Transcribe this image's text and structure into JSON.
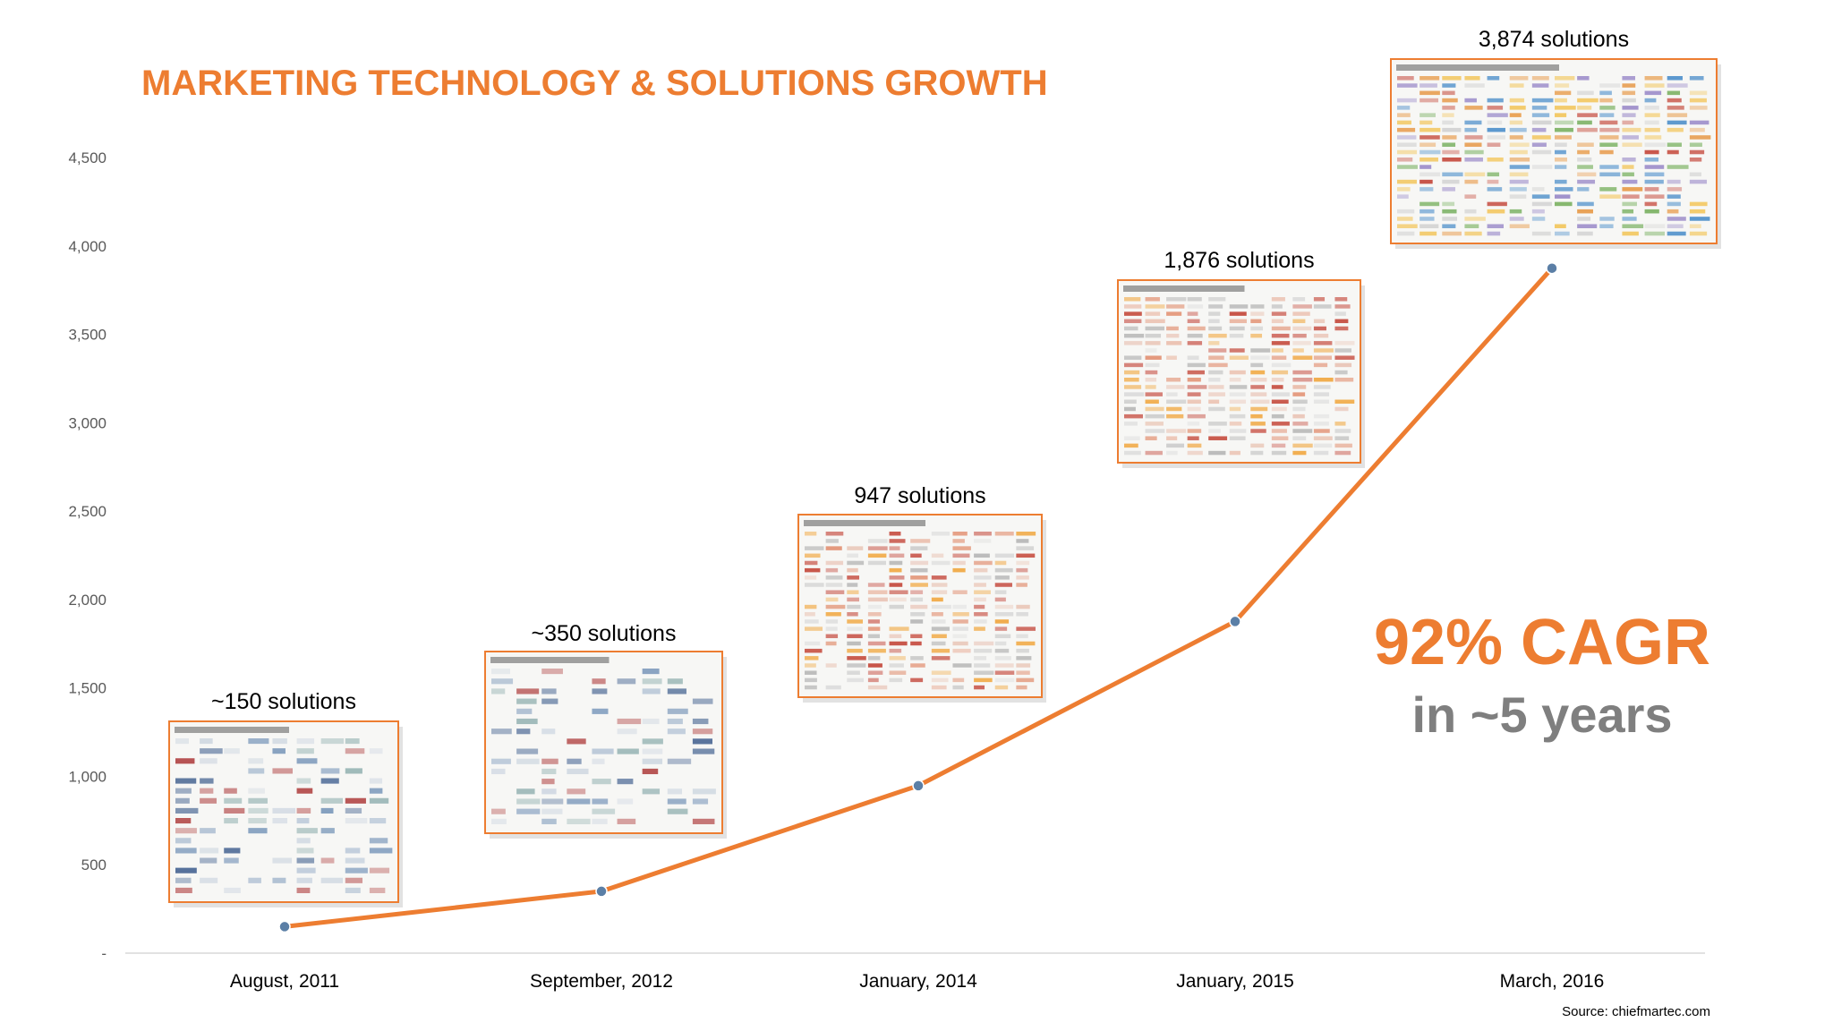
{
  "chart_data": {
    "type": "line",
    "title": "MARKETING TECHNOLOGY & SOLUTIONS GROWTH",
    "xlabel": "",
    "ylabel": "",
    "categories": [
      "August, 2011",
      "September, 2012",
      "January, 2014",
      "January, 2015",
      "March, 2016"
    ],
    "values": [
      150,
      350,
      947,
      1876,
      3874
    ],
    "data_labels": [
      "~150 solutions",
      "~350 solutions",
      "947 solutions",
      "1,876 solutions",
      "3,874 solutions"
    ],
    "y_ticks": [
      "-",
      "500",
      "1,000",
      "1,500",
      "2,000",
      "2,500",
      "3,000",
      "3,500",
      "4,000",
      "4,500"
    ],
    "ylim": [
      0,
      4500
    ],
    "grid": false,
    "line_color": "#ED7D31",
    "marker_color": "#5B7FA6",
    "annotation": {
      "headline": "92% CAGR",
      "subline": "in ~5 years"
    },
    "source": "Source: chiefmartec.com"
  },
  "colors": {
    "accent": "#ED7D31",
    "grey_text": "#7F7F7F",
    "thumb_border": "#ED7D31"
  }
}
